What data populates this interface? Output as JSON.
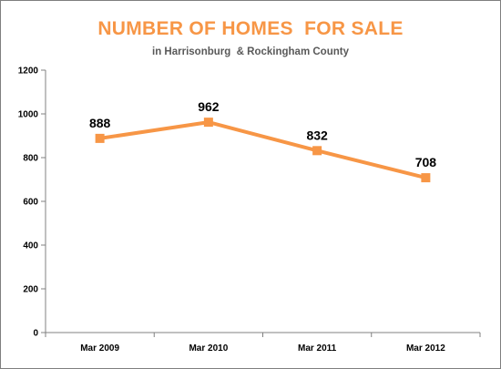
{
  "chart_data": {
    "type": "line",
    "title": "NUMBER OF HOMES  FOR SALE",
    "subtitle": "in Harrisonburg  & Rockingham County",
    "categories": [
      "Mar 2009",
      "Mar 2010",
      "Mar 2011",
      "Mar 2012"
    ],
    "series": [
      {
        "values": [
          888,
          962,
          832,
          708
        ]
      }
    ],
    "data_labels": [
      "888",
      "962",
      "832",
      "708"
    ],
    "ylim": [
      0,
      1200
    ],
    "yticks": [
      0,
      200,
      400,
      600,
      800,
      1000,
      1200
    ],
    "ytick_labels": [
      "0",
      "200",
      "400",
      "600",
      "800",
      "1000",
      "1200"
    ],
    "grid": false,
    "legend": "none",
    "marker": "square",
    "line_color": "#f79646",
    "title_color": "#f79646"
  }
}
